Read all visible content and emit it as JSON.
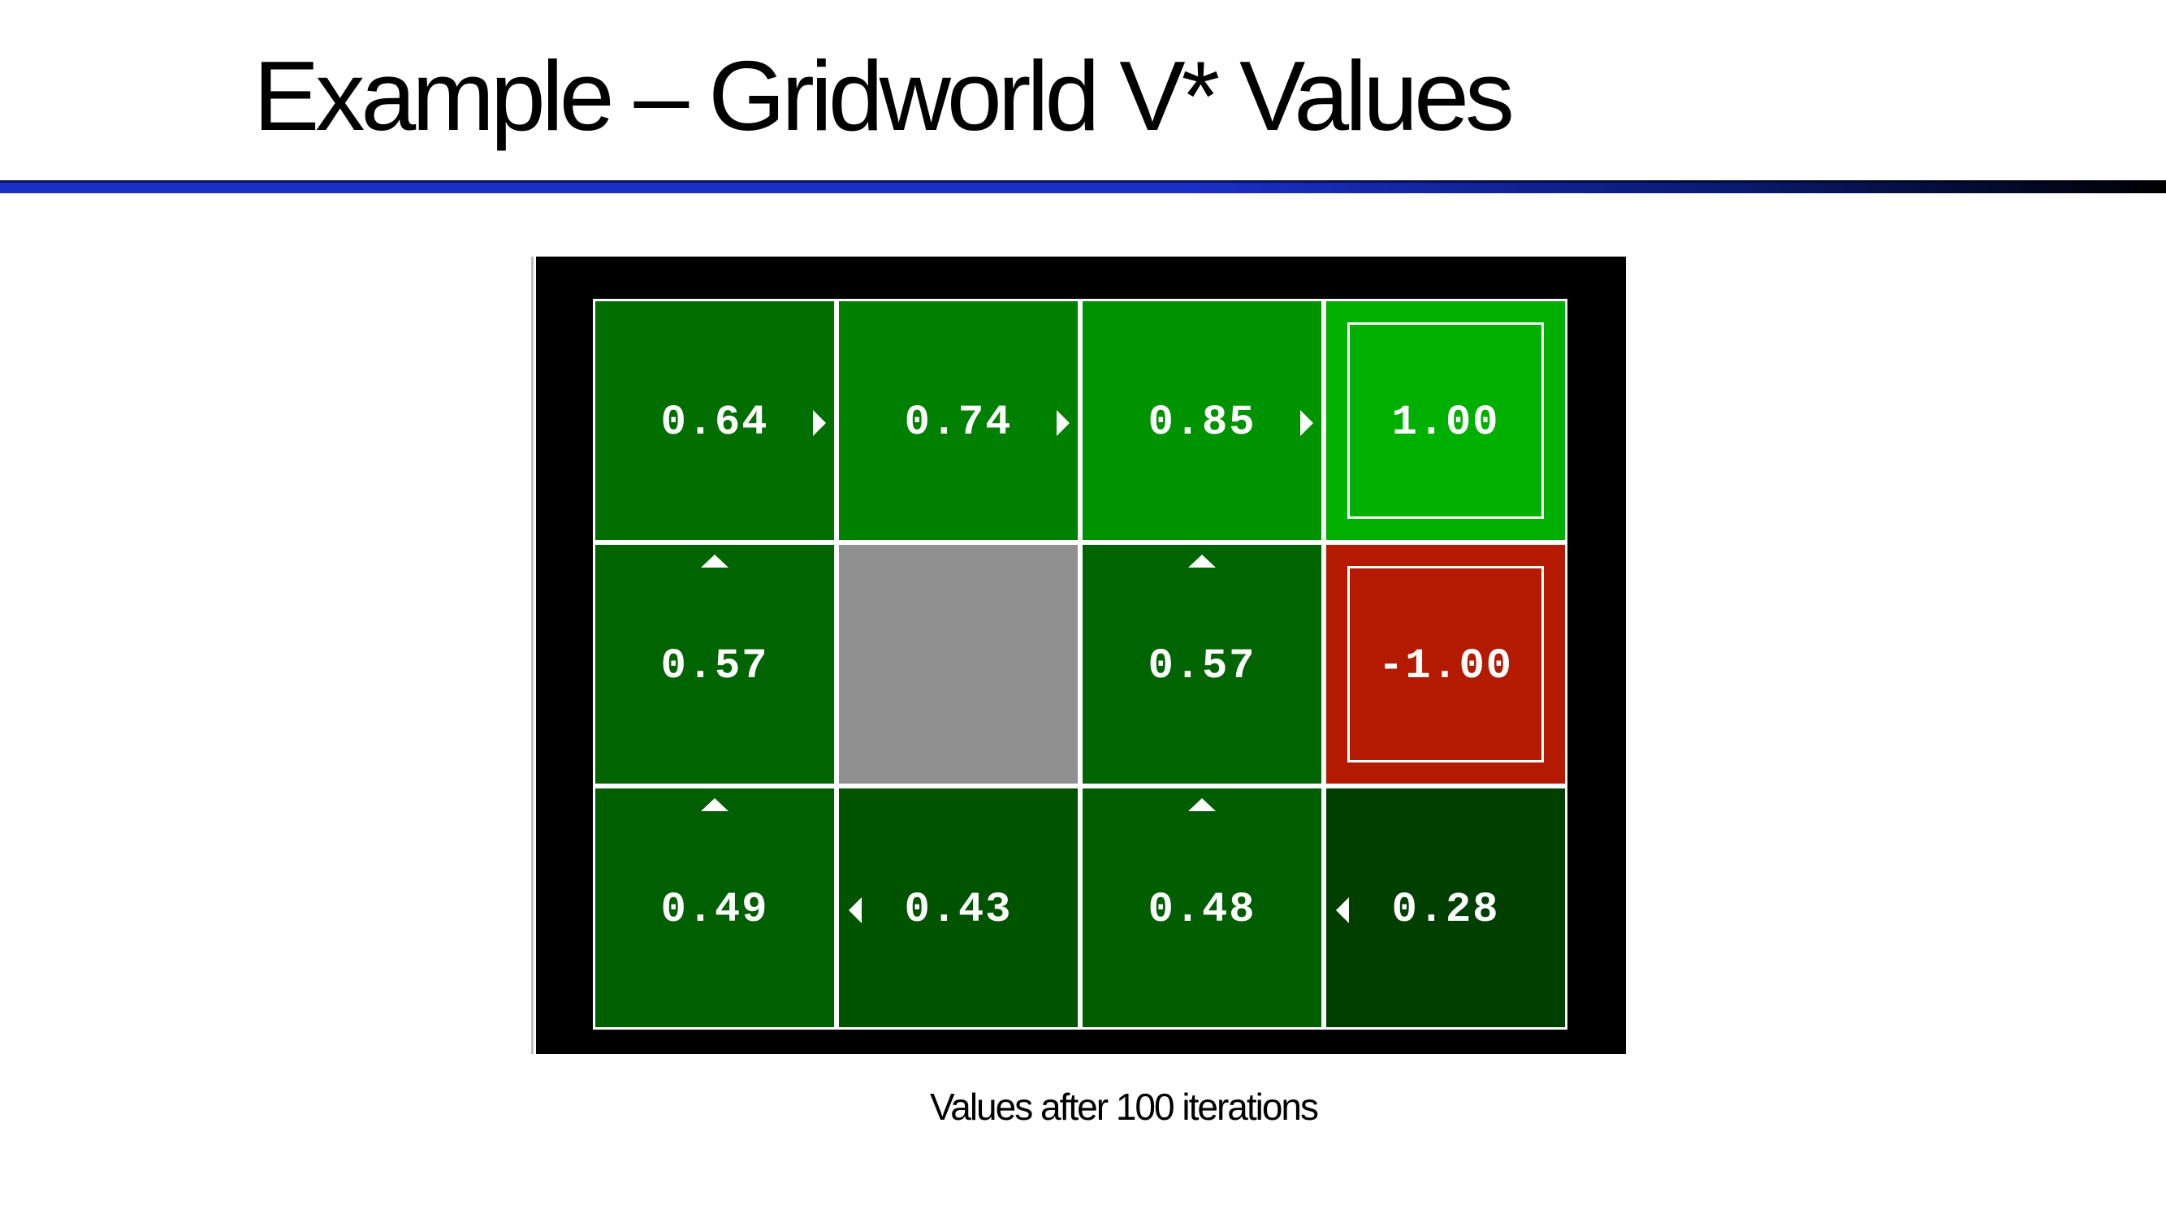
{
  "slide": {
    "title": "Example – Gridworld V* Values",
    "caption": "Values after 100 iterations"
  },
  "colors": {
    "rule_blue": "#1a2fc8",
    "board_background": "#000000",
    "cell_border": "#ffffff",
    "wall": "#909090",
    "terminal_positive": "#00b000",
    "terminal_negative": "#b41a00"
  },
  "gridworld": {
    "rows": 3,
    "cols": 4,
    "cells": [
      {
        "row": 0,
        "col": 0,
        "value": "0.64",
        "policy": "right",
        "fill": "#006f00",
        "type": "state"
      },
      {
        "row": 0,
        "col": 1,
        "value": "0.74",
        "policy": "right",
        "fill": "#008000",
        "type": "state"
      },
      {
        "row": 0,
        "col": 2,
        "value": "0.85",
        "policy": "right",
        "fill": "#009300",
        "type": "state"
      },
      {
        "row": 0,
        "col": 3,
        "value": "1.00",
        "policy": null,
        "fill": "#00b000",
        "type": "terminal"
      },
      {
        "row": 1,
        "col": 0,
        "value": "0.57",
        "policy": "up",
        "fill": "#006400",
        "type": "state"
      },
      {
        "row": 1,
        "col": 1,
        "value": null,
        "policy": null,
        "fill": "#909090",
        "type": "wall"
      },
      {
        "row": 1,
        "col": 2,
        "value": "0.57",
        "policy": "up",
        "fill": "#006400",
        "type": "state"
      },
      {
        "row": 1,
        "col": 3,
        "value": "-1.00",
        "policy": null,
        "fill": "#b41a00",
        "type": "terminal"
      },
      {
        "row": 2,
        "col": 0,
        "value": "0.49",
        "policy": "up",
        "fill": "#005f00",
        "type": "state"
      },
      {
        "row": 2,
        "col": 1,
        "value": "0.43",
        "policy": "left",
        "fill": "#005400",
        "type": "state"
      },
      {
        "row": 2,
        "col": 2,
        "value": "0.48",
        "policy": "up",
        "fill": "#005d00",
        "type": "state"
      },
      {
        "row": 2,
        "col": 3,
        "value": "0.28",
        "policy": "left",
        "fill": "#003f00",
        "type": "state"
      }
    ]
  }
}
